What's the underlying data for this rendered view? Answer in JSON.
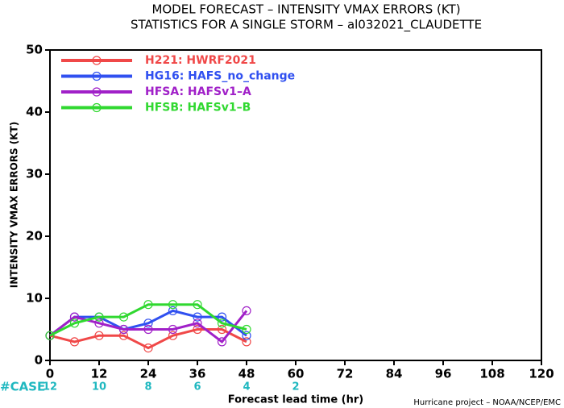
{
  "chart_data": {
    "type": "line",
    "title": "MODEL FORECAST – INTENSITY VMAX ERRORS (KT)",
    "subtitle": "STATISTICS FOR A SINGLE STORM – al032021_CLAUDETTE",
    "ylabel": "INTENSITY VMAX ERRORS (KT)",
    "xlabel": "Forecast lead time (hr)",
    "footer": "Hurricane project – NOAA/NCEP/EMC",
    "x": [
      0,
      6,
      12,
      18,
      24,
      30,
      36,
      42,
      48
    ],
    "series": [
      {
        "name": "H221: HWRF2021",
        "color": "#f04848",
        "values": [
          4,
          3,
          4,
          4,
          2,
          4,
          5,
          5,
          3
        ]
      },
      {
        "name": "HG16: HAFS_no_change",
        "color": "#3050f0",
        "values": [
          4,
          7,
          7,
          5,
          6,
          8,
          7,
          7,
          4
        ]
      },
      {
        "name": "HFSA: HAFSv1–A",
        "color": "#a020c8",
        "values": [
          4,
          7,
          6,
          5,
          5,
          5,
          6,
          3,
          8
        ]
      },
      {
        "name": "HFSB: HAFSv1–B",
        "color": "#30d830",
        "values": [
          4,
          6,
          7,
          7,
          9,
          9,
          9,
          6,
          5
        ]
      }
    ],
    "xlim": [
      0,
      120
    ],
    "xticks": [
      0,
      12,
      24,
      36,
      48,
      60,
      72,
      84,
      96,
      108,
      120
    ],
    "ylim": [
      0,
      50
    ],
    "yticks": [
      0,
      10,
      20,
      30,
      40,
      50
    ],
    "case_label": "#CASE",
    "case_counts": [
      12,
      10,
      8,
      6,
      4,
      2
    ],
    "case_color": "#20b8c0",
    "legend": "upper left"
  }
}
